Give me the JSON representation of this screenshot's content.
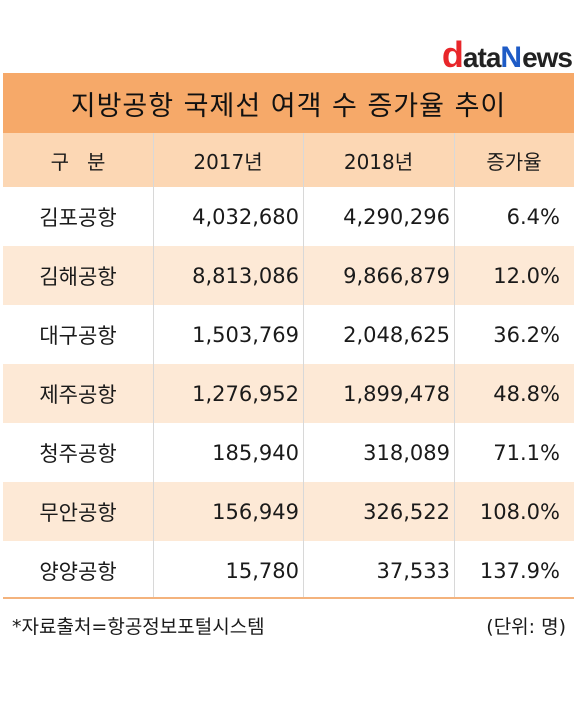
{
  "logo": {
    "d": "d",
    "ata": "ata",
    "n": "N",
    "ews": "ews"
  },
  "title": "지방공항 국제선 여객 수 증가율 추이",
  "headers": {
    "category": "구분",
    "y2017": "2017년",
    "y2018": "2018년",
    "rate": "증가율"
  },
  "rows": [
    {
      "name": "김포공항",
      "y2017": "4,032,680",
      "y2018": "4,290,296",
      "rate": "6.4%"
    },
    {
      "name": "김해공항",
      "y2017": "8,813,086",
      "y2018": "9,866,879",
      "rate": "12.0%"
    },
    {
      "name": "대구공항",
      "y2017": "1,503,769",
      "y2018": "2,048,625",
      "rate": "36.2%"
    },
    {
      "name": "제주공항",
      "y2017": "1,276,952",
      "y2018": "1,899,478",
      "rate": "48.8%"
    },
    {
      "name": "청주공항",
      "y2017": "185,940",
      "y2018": "318,089",
      "rate": "71.1%"
    },
    {
      "name": "무안공항",
      "y2017": "156,949",
      "y2018": "326,522",
      "rate": "108.0%"
    },
    {
      "name": "양양공항",
      "y2017": "15,780",
      "y2018": "37,533",
      "rate": "137.9%"
    }
  ],
  "footer": {
    "source": "*자료출처=항공정보포털시스템",
    "unit": "(단위: 명)"
  },
  "colors": {
    "title_bg": "#f6a969",
    "header_bg": "#fcd7b4",
    "alt_row_bg": "#fde9d6"
  }
}
